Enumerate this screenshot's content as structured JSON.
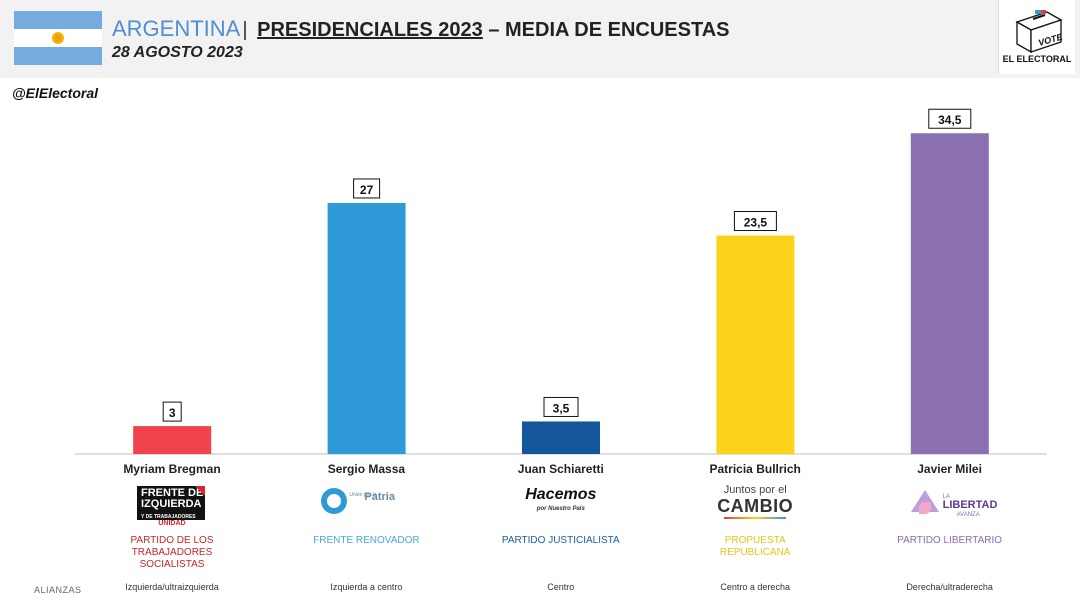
{
  "header": {
    "country": "ARGENTINA",
    "separator": "|",
    "title": "PRESIDENCIALES 2023",
    "dash": "–",
    "subtitle_part": "MEDIA DE ENCUESTAS",
    "date": "28 AGOSTO 2023",
    "logo_vote": "VOTE",
    "logo_name": "EL ELECTORAL"
  },
  "handle": "@ElElectoral",
  "alianzas_label": "ALIANZAS",
  "chart_data": {
    "type": "bar",
    "title": "ARGENTINA | PRESIDENCIALES 2023 – MEDIA DE ENCUESTAS",
    "categories": [
      "Myriam Bregman",
      "Sergio Massa",
      "Juan Schiaretti",
      "Patricia Bullrich",
      "Javier Milei"
    ],
    "values": [
      3,
      27,
      3.5,
      23.5,
      34.5
    ],
    "value_labels": [
      "3",
      "27",
      "3,5",
      "23,5",
      "34,5"
    ],
    "colors": [
      "#f0434b",
      "#2e9bd8",
      "#13579a",
      "#fbd31b",
      "#8a70b0"
    ],
    "ylim": [
      0,
      37
    ],
    "xlabel": "",
    "ylabel": ""
  },
  "candidates": [
    {
      "name": "Myriam Bregman",
      "party": "PARTIDO DE LOS TRABAJADORES SOCIALISTAS",
      "party_color": "#c0262d",
      "logo_lines": [
        "FRENTE DE",
        "IZQUIERDA",
        "Y DE TRABAJADORES",
        "UNIDAD"
      ],
      "alignment": "Izquierda/ultraizquierda"
    },
    {
      "name": "Sergio Massa",
      "party": "FRENTE RENOVADOR",
      "party_color": "#4aa8dc",
      "logo_lines": [
        "Unión por la",
        "Patria"
      ],
      "alignment": "Izquierda a centro"
    },
    {
      "name": "Juan Schiaretti",
      "party": "PARTIDO JUSTICIALISTA",
      "party_color": "#1d5ea8",
      "logo_lines": [
        "Hacemos",
        "por Nuestro País"
      ],
      "alignment": "Centro"
    },
    {
      "name": "Patricia Bullrich",
      "party": "PROPUESTA REPUBLICANA",
      "party_color": "#e8c41a",
      "logo_lines": [
        "Juntos por el",
        "CAMBIO"
      ],
      "alignment": "Centro a derecha"
    },
    {
      "name": "Javier Milei",
      "party": "PARTIDO LIBERTARIO",
      "party_color": "#8a6bb8",
      "logo_lines": [
        "LA",
        "LIBERTAD",
        "AVANZA"
      ],
      "alignment": "Derecha/ultraderecha"
    }
  ]
}
